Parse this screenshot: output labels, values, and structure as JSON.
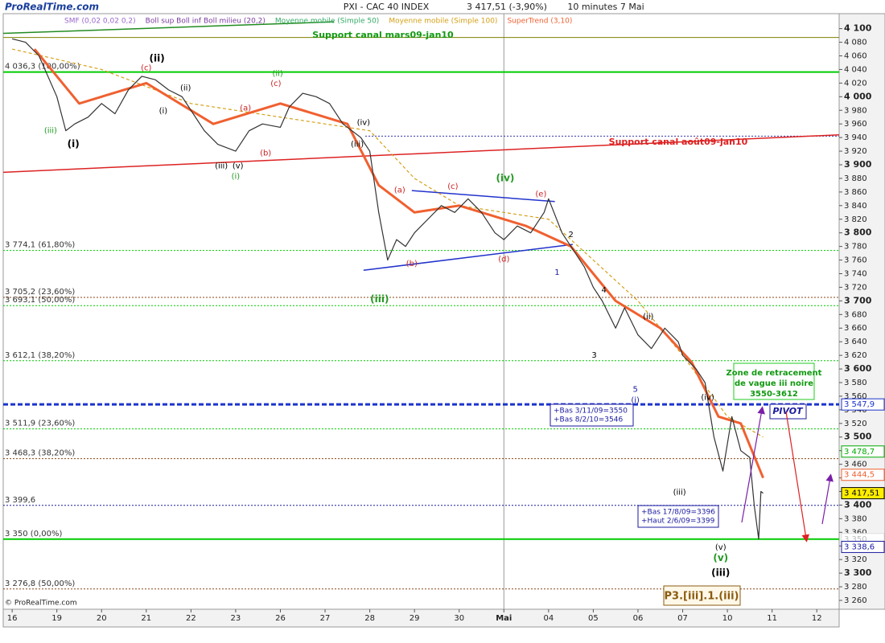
{
  "chart_data": {
    "type": "line",
    "title": "PXI - CAC 40 INDEX",
    "subtitle": "3 417,51 (-3,90%)",
    "period": "10 minutes  7 Mai",
    "logo": "ProRealTime.com",
    "copyright": "© ProRealTime.com",
    "indicators": [
      {
        "text": "SMF (0,02 0,02 0,2)",
        "color": "#9966cc"
      },
      {
        "text": "Boll sup Boll inf Boll milieu (20,2)",
        "color": "#7a3aa0"
      },
      {
        "text": "Moyenne mobile (Simple 50)",
        "color": "#33aa66"
      }
    ],
    "x": [
      0,
      0.3,
      0.6,
      1.0,
      1.2,
      1.4,
      1.7,
      2.0,
      2.3,
      2.6,
      2.9,
      3.2,
      3.5,
      3.8,
      4.0,
      4.3,
      4.6,
      5.0,
      5.3,
      5.6,
      6.0,
      6.2,
      6.5,
      6.8,
      7.1,
      7.4,
      7.8,
      8.0,
      8.2,
      8.4,
      8.6,
      8.8,
      9.0,
      9.3,
      9.6,
      9.9,
      10.2,
      10.5,
      10.8,
      11.0,
      11.3,
      11.6,
      11.9,
      12.0,
      12.3,
      12.6,
      12.8,
      13.0,
      13.2,
      13.5,
      13.7,
      14.0,
      14.3,
      14.6,
      14.9,
      15.0,
      15.3,
      15.5,
      15.7,
      15.9,
      16.1,
      16.3,
      16.5,
      16.6,
      16.7,
      16.75,
      16.8
    ],
    "values": [
      4085,
      4080,
      4060,
      4000,
      3950,
      3960,
      3970,
      3990,
      3975,
      4010,
      4030,
      4025,
      4010,
      4000,
      3980,
      3950,
      3930,
      3920,
      3950,
      3960,
      3955,
      3985,
      4005,
      4000,
      3990,
      3960,
      3940,
      3920,
      3830,
      3760,
      3790,
      3780,
      3800,
      3820,
      3840,
      3830,
      3850,
      3830,
      3800,
      3790,
      3810,
      3800,
      3830,
      3850,
      3800,
      3770,
      3750,
      3720,
      3700,
      3660,
      3690,
      3650,
      3630,
      3660,
      3640,
      3620,
      3600,
      3580,
      3500,
      3450,
      3530,
      3480,
      3470,
      3400,
      3350,
      3420,
      3417.51
    ],
    "color": "#333333",
    "series": [
      {
        "name": "Moyenne mobile (Simple 100)",
        "color": "#d4a017",
        "x": [
          0,
          2,
          4,
          6,
          8,
          9,
          10,
          11,
          12,
          13,
          14,
          15,
          16,
          16.8
        ],
        "values": [
          4070,
          4040,
          3990,
          3970,
          3950,
          3880,
          3840,
          3830,
          3820,
          3760,
          3700,
          3620,
          3530,
          3500
        ]
      },
      {
        "name": "SuperTrend (3,10)",
        "color": "#f06030",
        "x": [
          0.5,
          1.5,
          3,
          4.5,
          6,
          7.5,
          8.2,
          9,
          10,
          11.5,
          12.5,
          13.5,
          14.5,
          15.2,
          15.8,
          16.3,
          16.8
        ],
        "values": [
          4070,
          3990,
          4020,
          3960,
          3990,
          3960,
          3870,
          3830,
          3840,
          3810,
          3780,
          3700,
          3660,
          3610,
          3530,
          3520,
          3440
        ]
      }
    ],
    "xlim": [
      -0.2,
      18.5
    ],
    "xticks": [
      {
        "value": 0,
        "label": "16"
      },
      {
        "value": 1,
        "label": "19"
      },
      {
        "value": 2,
        "label": "20"
      },
      {
        "value": 3,
        "label": "21"
      },
      {
        "value": 4,
        "label": "22"
      },
      {
        "value": 5,
        "label": "23"
      },
      {
        "value": 6,
        "label": "26"
      },
      {
        "value": 7,
        "label": "27"
      },
      {
        "value": 8,
        "label": "28"
      },
      {
        "value": 9,
        "label": "29"
      },
      {
        "value": 10,
        "label": "30"
      },
      {
        "value": 11,
        "label": "Mai"
      },
      {
        "value": 12,
        "label": "04"
      },
      {
        "value": 13,
        "label": "05"
      },
      {
        "value": 14,
        "label": "06"
      },
      {
        "value": 15,
        "label": "07"
      },
      {
        "value": 16,
        "label": "10"
      },
      {
        "value": 17,
        "label": "11"
      },
      {
        "value": 18,
        "label": "12"
      }
    ],
    "ylim": [
      3247,
      4122
    ],
    "yticks": [
      {
        "value": 4100,
        "label": "4 100"
      },
      {
        "value": 4080,
        "label": "4 080"
      },
      {
        "value": 4060,
        "label": "4 060"
      },
      {
        "value": 4040,
        "label": "4 040"
      },
      {
        "value": 4020,
        "label": "4 020"
      },
      {
        "value": 4000,
        "label": "4 000"
      },
      {
        "value": 3980,
        "label": "3 980"
      },
      {
        "value": 3960,
        "label": "3 960"
      },
      {
        "value": 3940,
        "label": "3 940"
      },
      {
        "value": 3920,
        "label": "3 920"
      },
      {
        "value": 3900,
        "label": "3 900"
      },
      {
        "value": 3880,
        "label": "3 880"
      },
      {
        "value": 3860,
        "label": "3 860"
      },
      {
        "value": 3840,
        "label": "3 840"
      },
      {
        "value": 3820,
        "label": "3 820"
      },
      {
        "value": 3800,
        "label": "3 800"
      },
      {
        "value": 3780,
        "label": "3 780"
      },
      {
        "value": 3760,
        "label": "3 760"
      },
      {
        "value": 3740,
        "label": "3 740"
      },
      {
        "value": 3720,
        "label": "3 720"
      },
      {
        "value": 3700,
        "label": "3 700"
      },
      {
        "value": 3680,
        "label": "3 680"
      },
      {
        "value": 3660,
        "label": "3 660"
      },
      {
        "value": 3640,
        "label": "3 640"
      },
      {
        "value": 3620,
        "label": "3 620"
      },
      {
        "value": 3600,
        "label": "3 600"
      },
      {
        "value": 3580,
        "label": "3 580"
      },
      {
        "value": 3560,
        "label": "3 560"
      },
      {
        "value": 3540,
        "label": "3 540"
      },
      {
        "value": 3520,
        "label": "3 520"
      },
      {
        "value": 3500,
        "label": "3 500"
      },
      {
        "value": 3480,
        "label": "3 480"
      },
      {
        "value": 3460,
        "label": "3 460"
      },
      {
        "value": 3440,
        "label": "3 440"
      },
      {
        "value": 3420,
        "label": "3 420"
      },
      {
        "value": 3400,
        "label": "3 400"
      },
      {
        "value": 3380,
        "label": "3 380"
      },
      {
        "value": 3360,
        "label": "3 360"
      },
      {
        "value": 3340,
        "label": "3 340"
      },
      {
        "value": 3320,
        "label": "3 320"
      },
      {
        "value": 3300,
        "label": "3 300"
      },
      {
        "value": 3280,
        "label": "3 280"
      },
      {
        "value": 3260,
        "label": "3 260"
      }
    ],
    "grid": false,
    "levels": [
      {
        "value": 4087,
        "color": "#808000",
        "style": "solid"
      },
      {
        "value": 4036.3,
        "label": "4 036,3 (100,00%)",
        "color": "#00cc00",
        "style": "solid-thick"
      },
      {
        "value": 3942,
        "color": "#3333aa",
        "style": "dotted",
        "x_from": 7.9
      },
      {
        "value": 3774.1,
        "label": "3 774,1 (61,80%)",
        "color": "#00cc00",
        "style": "dotted"
      },
      {
        "value": 3705.2,
        "label": "3 705,2 (23,60%)",
        "color": "#8b4513",
        "style": "dotted"
      },
      {
        "value": 3693.1,
        "label": "3 693,1 (50,00%)",
        "color": "#00cc00",
        "style": "dotted"
      },
      {
        "value": 3612.1,
        "label": "3 612,1 (38,20%)",
        "color": "#00cc00",
        "style": "dotted"
      },
      {
        "value": 3547.9,
        "color": "#1a33cc",
        "style": "dashed-thick"
      },
      {
        "value": 3511.9,
        "label": "3 511,9 (23,60%)",
        "color": "#00cc00",
        "style": "dotted"
      },
      {
        "value": 3468.3,
        "label": "3 468,3 (38,20%)",
        "color": "#8b4513",
        "style": "dotted"
      },
      {
        "value": 3399.6,
        "label": "3 399,6",
        "color": "#1a1aa0",
        "style": "dotted"
      },
      {
        "value": 3350,
        "label": "3 350 (0,00%)",
        "color": "#00cc00",
        "style": "solid-thick"
      },
      {
        "value": 3276.8,
        "label": "3 276,8 (50,00%)",
        "color": "#8b4513",
        "style": "dotted"
      }
    ],
    "trendlines": [
      {
        "x": [
          -0.2,
          7.2
        ],
        "values": [
          4093,
          4110
        ],
        "color": "#228b22"
      },
      {
        "x": [
          -0.2,
          18.5
        ],
        "values": [
          3889,
          3944
        ],
        "color": "#dd2222"
      },
      {
        "x": [
          8.94,
          12.14
        ],
        "values": [
          3862,
          3846
        ],
        "color": "#2233cc"
      },
      {
        "x": [
          7.86,
          12.54
        ],
        "values": [
          3745,
          3783
        ],
        "color": "#2233cc"
      }
    ],
    "price_tags": [
      {
        "value": 3547.9,
        "label": "3 547,9",
        "color": "#1a33cc",
        "bg": "#ffffff"
      },
      {
        "value": 3478.7,
        "label": "3 478,7",
        "color": "#00aa00",
        "bg": "#ffffff"
      },
      {
        "value": 3444.5,
        "label": "3 444,5",
        "color": "#f06030",
        "bg": "#ffffff"
      },
      {
        "value": 3417.51,
        "label": "3 417,51",
        "color": "#000000",
        "bg": "#ffee00"
      },
      {
        "value": 3350,
        "label": "3 350",
        "color": "#bbbbbb",
        "bg": "#ffffff"
      },
      {
        "value": 3338.6,
        "label": "3 338,6",
        "color": "#1a1aa0",
        "bg": "#ffffff"
      }
    ],
    "wave_labels": [
      {
        "x": 3.24,
        "y": 4056,
        "text": "(ii)",
        "color": "#000000",
        "bold": true
      },
      {
        "x": 1.37,
        "y": 3930,
        "text": "(i)",
        "color": "#000000",
        "bold": true
      },
      {
        "x": 15.85,
        "y": 3300,
        "text": "(iii)",
        "color": "#000000",
        "bold": true
      },
      {
        "x": 11.03,
        "y": 3880,
        "text": "(iv)",
        "color": "#229922",
        "bold": true
      },
      {
        "x": 8.22,
        "y": 3702,
        "text": "(iii)",
        "color": "#229922",
        "bold": true
      },
      {
        "x": 15.85,
        "y": 3322,
        "text": "(v)",
        "color": "#229922",
        "bold": true
      },
      {
        "x": 3.0,
        "y": 4042,
        "text": "(c)",
        "color": "#cc2222"
      },
      {
        "x": 8.67,
        "y": 3863,
        "text": "(a)",
        "color": "#cc2222"
      },
      {
        "x": 9.86,
        "y": 3868,
        "text": "(c)",
        "color": "#cc2222"
      },
      {
        "x": 11.83,
        "y": 3857,
        "text": "(e)",
        "color": "#cc2222"
      },
      {
        "x": 8.94,
        "y": 3755,
        "text": "(b)",
        "color": "#cc2222"
      },
      {
        "x": 11.0,
        "y": 3761,
        "text": "(d)",
        "color": "#cc2222"
      },
      {
        "x": 5.22,
        "y": 3983,
        "text": "(a)",
        "color": "#cc2222"
      },
      {
        "x": 5.67,
        "y": 3917,
        "text": "(b)",
        "color": "#cc2222"
      },
      {
        "x": 5.9,
        "y": 4019,
        "text": "(c)",
        "color": "#cc2222"
      },
      {
        "x": 14.23,
        "y": 3677,
        "text": "(ii)",
        "color": "#000000"
      },
      {
        "x": 15.56,
        "y": 3558,
        "text": "(iv)",
        "color": "#000000"
      },
      {
        "x": 14.93,
        "y": 3419,
        "text": "(iii)",
        "color": "#000000"
      },
      {
        "x": 15.85,
        "y": 3338,
        "text": "(v)",
        "color": "#000000"
      },
      {
        "x": 13.94,
        "y": 3554,
        "text": "(i)",
        "color": "#1a1aa0"
      },
      {
        "x": 13.94,
        "y": 3570,
        "text": "5",
        "color": "#1a1aa0"
      },
      {
        "x": 13.02,
        "y": 3620,
        "text": "3",
        "color": "#000000"
      },
      {
        "x": 12.19,
        "y": 3742,
        "text": "1",
        "color": "#1a1aa0"
      },
      {
        "x": 12.5,
        "y": 3797,
        "text": "2",
        "color": "#000000"
      },
      {
        "x": 13.24,
        "y": 3716,
        "text": "4",
        "color": "#000000"
      },
      {
        "x": 0.86,
        "y": 3950,
        "text": "(iii)",
        "color": "#229922"
      },
      {
        "x": 5.94,
        "y": 4034,
        "text": "(ii)",
        "color": "#229922"
      },
      {
        "x": 7.86,
        "y": 3962,
        "text": "(iv)",
        "color": "#000000"
      },
      {
        "x": 7.72,
        "y": 3930,
        "text": "(iii)",
        "color": "#000000"
      },
      {
        "x": 5.0,
        "y": 3883,
        "text": "(i)",
        "color": "#229922"
      },
      {
        "x": 5.05,
        "y": 3898,
        "text": "(v)",
        "color": "#000000"
      },
      {
        "x": 4.68,
        "y": 3898,
        "text": "(iii)",
        "color": "#000000"
      },
      {
        "x": 3.88,
        "y": 4013,
        "text": "(ii)",
        "color": "#000000"
      },
      {
        "x": 3.38,
        "y": 3979,
        "text": "(i)",
        "color": "#000000"
      }
    ],
    "annotations": {
      "support_mars": "Support canal mars09-jan10",
      "support_aout": "Support canal août09-jan10",
      "zone": [
        "Zone de retracement",
        "de vague iii noire",
        "3550-3612"
      ],
      "pivot": "PIVOT",
      "box_1": [
        "+Bas 3/11/09=3550",
        "+Bas 8/2/10=3546"
      ],
      "box_2": [
        "+Bas 17/8/09=3396",
        "+Haut 2/6/09=3399"
      ],
      "count": "P3.[iii].1.(iii)"
    }
  }
}
